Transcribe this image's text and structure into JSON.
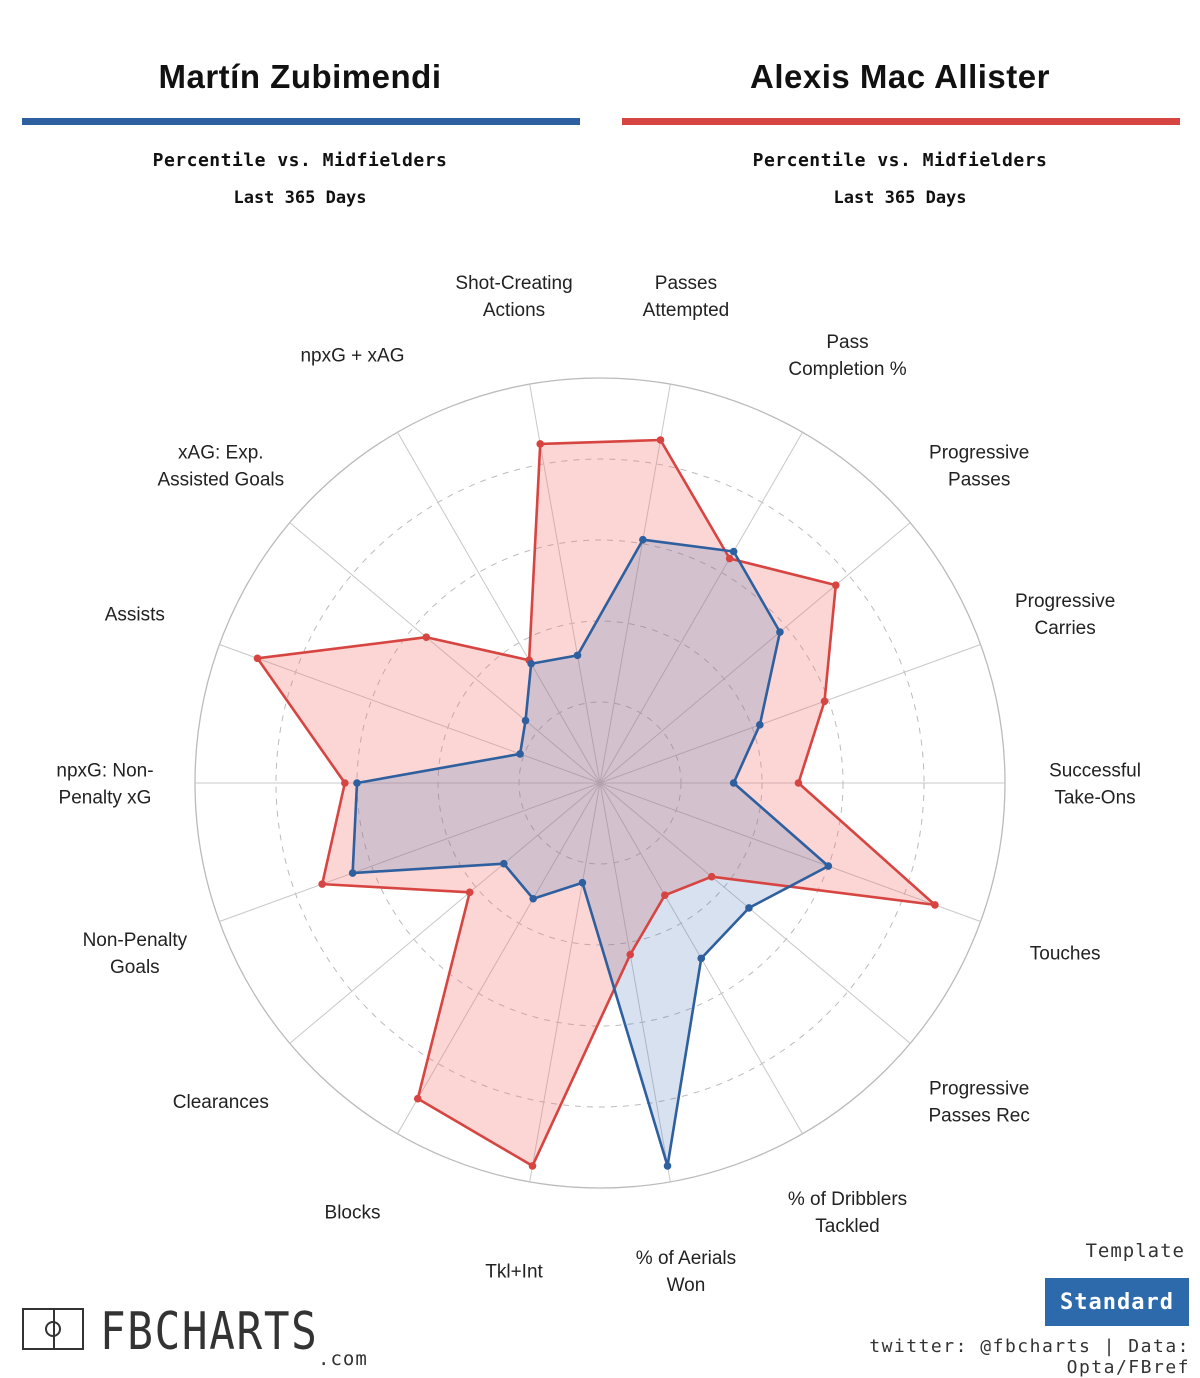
{
  "colors": {
    "player1": "#2e5f9e",
    "player2": "#d64541",
    "player1_fill": "rgba(74,120,180,0.22)",
    "player2_fill": "rgba(242,120,115,0.30)",
    "grid": "#bbbbbb",
    "template_bg": "#2d6aab"
  },
  "players": [
    {
      "name": "Martín Zubimendi",
      "subtitle": "Percentile vs. Midfielders",
      "period": "Last 365 Days"
    },
    {
      "name": "Alexis Mac Allister",
      "subtitle": "Percentile vs. Midfielders",
      "period": "Last 365 Days"
    }
  ],
  "template": {
    "label": "Template",
    "value": "Standard"
  },
  "branding": {
    "logo_text": "FBCHARTS",
    "logo_suffix": ".com"
  },
  "footer": "twitter: @fbcharts | Data: Opta/FBref",
  "chart_data": {
    "type": "radar",
    "scale": [
      0,
      100
    ],
    "axes": [
      {
        "label": [
          "Passes",
          "Attempted"
        ]
      },
      {
        "label": [
          "Pass",
          "Completion %"
        ]
      },
      {
        "label": [
          "Progressive",
          "Passes"
        ]
      },
      {
        "label": [
          "Progressive",
          "Carries"
        ]
      },
      {
        "label": [
          "Successful",
          "Take-Ons"
        ]
      },
      {
        "label": [
          "Touches"
        ]
      },
      {
        "label": [
          "Progressive",
          "Passes Rec"
        ]
      },
      {
        "label": [
          "% of Dribblers",
          "Tackled"
        ]
      },
      {
        "label": [
          "% of Aerials",
          "Won"
        ]
      },
      {
        "label": [
          "Tkl+Int"
        ]
      },
      {
        "label": [
          "Blocks"
        ]
      },
      {
        "label": [
          "Clearances"
        ]
      },
      {
        "label": [
          "Non-Penalty",
          "Goals"
        ]
      },
      {
        "label": [
          "npxG: Non-",
          "Penalty xG"
        ]
      },
      {
        "label": [
          "Assists"
        ]
      },
      {
        "label": [
          "xAG: Exp.",
          "Assisted Goals"
        ]
      },
      {
        "label": [
          "npxG + xAG"
        ]
      },
      {
        "label": [
          "Shot-Creating",
          "Actions"
        ]
      }
    ],
    "series": [
      {
        "name": "Martín Zubimendi",
        "values": [
          61,
          66,
          58,
          42,
          33,
          60,
          48,
          50,
          96,
          25,
          33,
          31,
          65,
          60,
          21,
          24,
          34,
          32
        ]
      },
      {
        "name": "Alexis Mac Allister",
        "values": [
          86,
          64,
          76,
          59,
          49,
          88,
          36,
          32,
          43,
          96,
          90,
          42,
          73,
          63,
          90,
          56,
          35,
          85
        ]
      }
    ]
  }
}
